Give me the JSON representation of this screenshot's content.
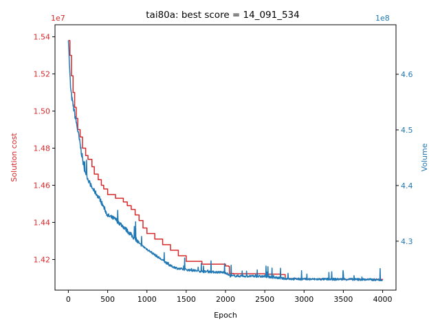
{
  "chart_data": {
    "type": "line",
    "title": "tai80a: best score = 14_091_534",
    "xlabel": "Epoch",
    "ylabel_left": "Solution cost",
    "ylabel_right": "Volume",
    "left_axis_offset": "1e7",
    "right_axis_offset": "1e8",
    "xlim": [
      -170,
      4170
    ],
    "ylim_left": [
      14.035,
      15.465
    ],
    "ylim_right": [
      4.212,
      4.689
    ],
    "x_ticks": [
      0,
      500,
      1000,
      1500,
      2000,
      2500,
      3000,
      3500,
      4000
    ],
    "x_tick_labels": [
      "0",
      "500",
      "1000",
      "1500",
      "2000",
      "2500",
      "3000",
      "3500",
      "4000"
    ],
    "y_left_ticks": [
      14.2,
      14.4,
      14.6,
      14.8,
      15.0,
      15.2,
      15.4
    ],
    "y_left_tick_labels": [
      "1.42",
      "1.44",
      "1.46",
      "1.48",
      "1.50",
      "1.52",
      "1.54"
    ],
    "y_right_ticks": [
      4.3,
      4.4,
      4.5,
      4.6
    ],
    "y_right_tick_labels": [
      "4.3",
      "4.4",
      "4.5",
      "4.6"
    ],
    "grid": false,
    "colors": {
      "cost": "#d62728",
      "volume": "#1f77b4"
    },
    "series": [
      {
        "axis": "left",
        "color": "#d62728",
        "x": [
          0,
          20,
          40,
          60,
          80,
          100,
          120,
          150,
          180,
          220,
          250,
          300,
          330,
          380,
          420,
          450,
          500,
          600,
          700,
          750,
          800,
          850,
          900,
          950,
          1000,
          1100,
          1200,
          1300,
          1400,
          1500,
          1700,
          2000,
          2040,
          2050,
          2100,
          2500,
          2700,
          2760,
          3000,
          3500,
          4000
        ],
        "y": [
          15.38,
          15.3,
          15.19,
          15.1,
          15.02,
          14.96,
          14.9,
          14.86,
          14.8,
          14.76,
          14.74,
          14.7,
          14.66,
          14.63,
          14.6,
          14.58,
          14.55,
          14.53,
          14.51,
          14.49,
          14.47,
          14.44,
          14.41,
          14.37,
          14.34,
          14.31,
          14.28,
          14.25,
          14.22,
          14.19,
          14.175,
          14.165,
          14.163,
          14.125,
          14.123,
          14.121,
          14.119,
          14.097,
          14.095,
          14.093,
          14.0915
        ]
      },
      {
        "axis": "right",
        "color": "#1f77b4",
        "noise": true,
        "x": [
          0,
          15,
          30,
          50,
          70,
          90,
          110,
          140,
          170,
          200,
          250,
          300,
          350,
          400,
          450,
          500,
          600,
          700,
          800,
          900,
          1000,
          1100,
          1200,
          1300,
          1400,
          1500,
          1700,
          2000,
          2060,
          2500,
          2760,
          3000,
          3500,
          4000
        ],
        "y": [
          4.665,
          4.61,
          4.57,
          4.55,
          4.535,
          4.52,
          4.505,
          4.48,
          4.455,
          4.43,
          4.41,
          4.395,
          4.385,
          4.375,
          4.36,
          4.345,
          4.338,
          4.325,
          4.31,
          4.295,
          4.285,
          4.275,
          4.265,
          4.255,
          4.25,
          4.248,
          4.245,
          4.243,
          4.237,
          4.236,
          4.232,
          4.231,
          4.231,
          4.23
        ]
      }
    ]
  }
}
